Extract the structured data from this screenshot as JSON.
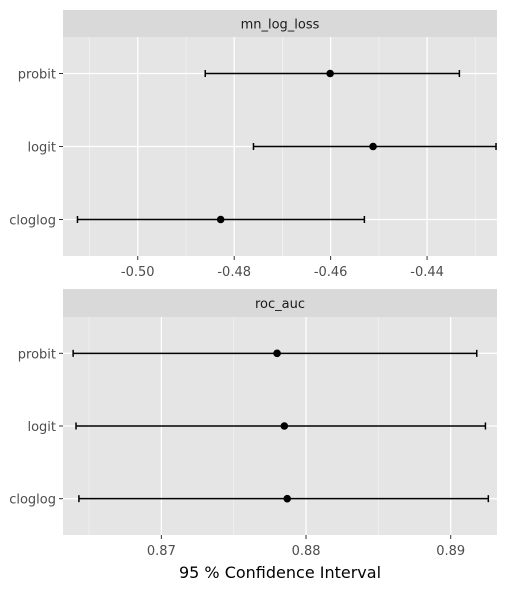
{
  "chart_data": {
    "type": "errorbar",
    "xlabel": "95 %  Confidence  Interval",
    "categories": [
      "probit",
      "logit",
      "cloglog"
    ],
    "panels": [
      {
        "title": "mn_log_loss",
        "xlim": [
          -0.5155,
          -0.4255
        ],
        "xticks": [
          -0.5,
          -0.48,
          -0.46,
          -0.44
        ],
        "xtick_labels": [
          "-0.50",
          "-0.48",
          "-0.46",
          "-0.44"
        ],
        "points": [
          {
            "category": "probit",
            "estimate": -0.4601,
            "lower": -0.486,
            "upper": -0.4333
          },
          {
            "category": "logit",
            "estimate": -0.4512,
            "lower": -0.476,
            "upper": -0.4257
          },
          {
            "category": "cloglog",
            "estimate": -0.4828,
            "lower": -0.5125,
            "upper": -0.453
          }
        ]
      },
      {
        "title": "roc_auc",
        "xlim": [
          0.8632,
          0.8932
        ],
        "xticks": [
          0.87,
          0.88,
          0.89
        ],
        "xtick_labels": [
          "0.87",
          "0.88",
          "0.89"
        ],
        "points": [
          {
            "category": "probit",
            "estimate": 0.878,
            "lower": 0.8639,
            "upper": 0.8918
          },
          {
            "category": "logit",
            "estimate": 0.8785,
            "lower": 0.8641,
            "upper": 0.8924
          },
          {
            "category": "cloglog",
            "estimate": 0.8787,
            "lower": 0.8643,
            "upper": 0.8926
          }
        ]
      }
    ]
  }
}
